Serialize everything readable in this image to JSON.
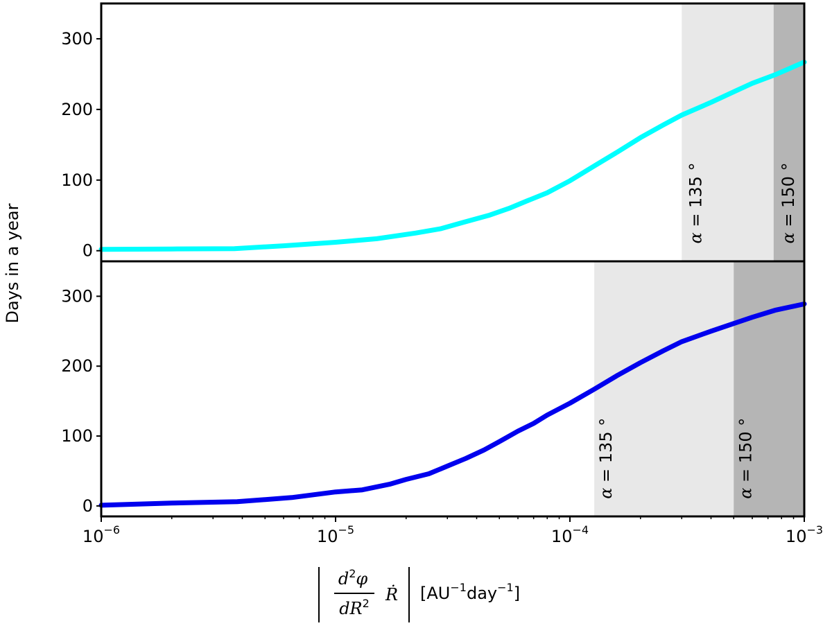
{
  "chart_data": {
    "type": "line",
    "ylabel": "Days in a year",
    "xlabel": {
      "numerator": "d",
      "numerator_sup": "2",
      "numerator_var": "φ",
      "denominator": "dR",
      "denominator_sup": "2",
      "rdot": "Ṙ",
      "units": "[AU",
      "units_sup1": "−1",
      "units_mid": "day",
      "units_sup2": "−1",
      "units_end": "]"
    },
    "x_scale": "log",
    "xlim": [
      1e-06,
      0.001
    ],
    "ylim": [
      -15,
      350
    ],
    "x_ticks": [
      {
        "value": 1e-06,
        "base": "10",
        "exp": "−6"
      },
      {
        "value": 1e-05,
        "base": "10",
        "exp": "−5"
      },
      {
        "value": 0.0001,
        "base": "10",
        "exp": "−4"
      },
      {
        "value": 0.001,
        "base": "10",
        "exp": "−3"
      }
    ],
    "y_ticks": [
      "0",
      "100",
      "200",
      "300"
    ],
    "panels": [
      {
        "name": "top",
        "color": "#00ffff",
        "bands": [
          {
            "x_from": 0.0003,
            "x_to": 0.00074,
            "color": "#e8e8e8",
            "label_greek": "α",
            "label_rest": " = 135 °",
            "label_x": 0.00033
          },
          {
            "x_from": 0.00074,
            "x_to": 0.001,
            "color": "#b5b5b5",
            "label_greek": "α",
            "label_rest": " = 150 °",
            "label_x": 0.00082
          }
        ],
        "series": [
          {
            "x": [
              1e-06,
              2e-06,
              3.7e-06,
              6e-06,
              1e-05,
              1.5e-05,
              2.2e-05,
              2.8e-05,
              3.5e-05,
              4.5e-05,
              5.5e-05,
              6.5e-05,
              8e-05,
              0.0001,
              0.00013,
              0.00016,
              0.0002,
              0.00025,
              0.0003,
              0.0004,
              0.0005,
              0.0006,
              0.00075,
              0.001
            ],
            "y": [
              2,
              2.5,
              3,
              7,
              12,
              17,
              25,
              31,
              40,
              50,
              60,
              70,
              82,
              99,
              122,
              140,
              160,
              178,
              192,
              210,
              225,
              237,
              249,
              267
            ]
          }
        ]
      },
      {
        "name": "bottom",
        "color": "#0000ee",
        "bands": [
          {
            "x_from": 0.000127,
            "x_to": 0.0005,
            "color": "#e8e8e8",
            "label_greek": "α",
            "label_rest": " = 135 °",
            "label_x": 0.000137
          },
          {
            "x_from": 0.0005,
            "x_to": 0.001,
            "color": "#b5b5b5",
            "label_greek": "α",
            "label_rest": " = 150 °",
            "label_x": 0.00054
          }
        ],
        "series": [
          {
            "x": [
              1e-06,
              2e-06,
              3.8e-06,
              6.5e-06,
              1e-05,
              1.3e-05,
              1.7e-05,
              2e-05,
              2.5e-05,
              3e-05,
              3.6e-05,
              4.3e-05,
              5e-05,
              6e-05,
              7e-05,
              8e-05,
              0.0001,
              0.000127,
              0.00016,
              0.0002,
              0.00025,
              0.0003,
              0.0004,
              0.0005,
              0.0006,
              0.00075,
              0.001
            ],
            "y": [
              1,
              4,
              6,
              12,
              20,
              23,
              31,
              38,
              46,
              57,
              68,
              80,
              92,
              107,
              118,
              130,
              147,
              167,
              187,
              205,
              222,
              235,
              250,
              261,
              270,
              280,
              289
            ]
          }
        ]
      }
    ]
  }
}
